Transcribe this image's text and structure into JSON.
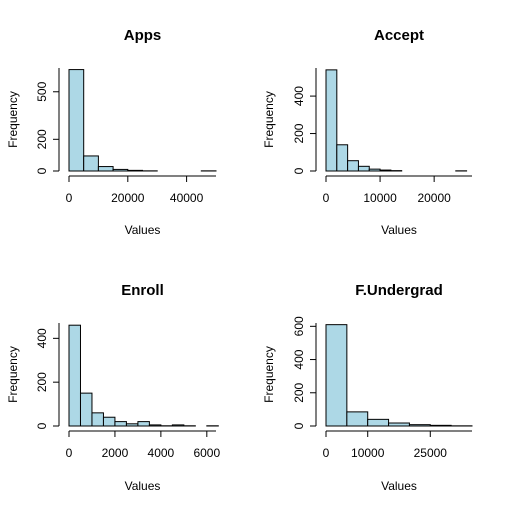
{
  "chart_data": [
    {
      "type": "bar",
      "title": "Apps",
      "xlabel": "Values",
      "ylabel": "Frequency",
      "xlim": [
        0,
        50000
      ],
      "ylim": [
        0,
        650
      ],
      "bin_edges": [
        0,
        5000,
        10000,
        15000,
        20000,
        25000,
        30000,
        35000,
        40000,
        45000,
        50000
      ],
      "values": [
        640,
        95,
        28,
        10,
        4,
        1,
        0,
        0,
        0,
        1
      ],
      "x_ticks": [
        0,
        20000,
        40000
      ],
      "x_tick_labels": [
        "0",
        "20000",
        "40000"
      ],
      "y_ticks": [
        0,
        200,
        500
      ],
      "y_tick_labels": [
        "0",
        "200",
        "500"
      ]
    },
    {
      "type": "bar",
      "title": "Accept",
      "xlabel": "Values",
      "ylabel": "Frequency",
      "xlim": [
        0,
        27000
      ],
      "ylim": [
        0,
        550
      ],
      "bin_edges": [
        0,
        2000,
        4000,
        6000,
        8000,
        10000,
        12000,
        14000,
        16000,
        18000,
        20000,
        22000,
        24000,
        26000
      ],
      "values": [
        540,
        140,
        55,
        25,
        10,
        5,
        2,
        0,
        0,
        0,
        0,
        0,
        1
      ],
      "x_ticks": [
        0,
        10000,
        20000
      ],
      "x_tick_labels": [
        "0",
        "10000",
        "20000"
      ],
      "y_ticks": [
        0,
        200,
        400
      ],
      "y_tick_labels": [
        "0",
        "200",
        "400"
      ]
    },
    {
      "type": "bar",
      "title": "Enroll",
      "xlabel": "Values",
      "ylabel": "Frequency",
      "xlim": [
        0,
        6400
      ],
      "ylim": [
        0,
        470
      ],
      "bin_edges": [
        0,
        500,
        1000,
        1500,
        2000,
        2500,
        3000,
        3500,
        4000,
        4500,
        5000,
        5500,
        6000,
        6500
      ],
      "values": [
        460,
        150,
        60,
        40,
        20,
        10,
        20,
        5,
        1,
        5,
        1,
        0,
        1
      ],
      "x_ticks": [
        0,
        2000,
        4000,
        6000
      ],
      "x_tick_labels": [
        "0",
        "2000",
        "4000",
        "6000"
      ],
      "y_ticks": [
        0,
        200,
        400
      ],
      "y_tick_labels": [
        "0",
        "200",
        "400"
      ]
    },
    {
      "type": "bar",
      "title": "F.Undergrad",
      "xlabel": "Values",
      "ylabel": "Frequency",
      "xlim": [
        0,
        35000
      ],
      "ylim": [
        0,
        620
      ],
      "bin_edges": [
        0,
        5000,
        10000,
        15000,
        20000,
        25000,
        30000,
        35000
      ],
      "values": [
        610,
        85,
        40,
        18,
        8,
        4,
        1
      ],
      "x_ticks": [
        0,
        10000,
        25000
      ],
      "x_tick_labels": [
        "0",
        "10000",
        "25000"
      ],
      "y_ticks": [
        0,
        200,
        400,
        600
      ],
      "y_tick_labels": [
        "0",
        "200",
        "400",
        "600"
      ]
    }
  ]
}
